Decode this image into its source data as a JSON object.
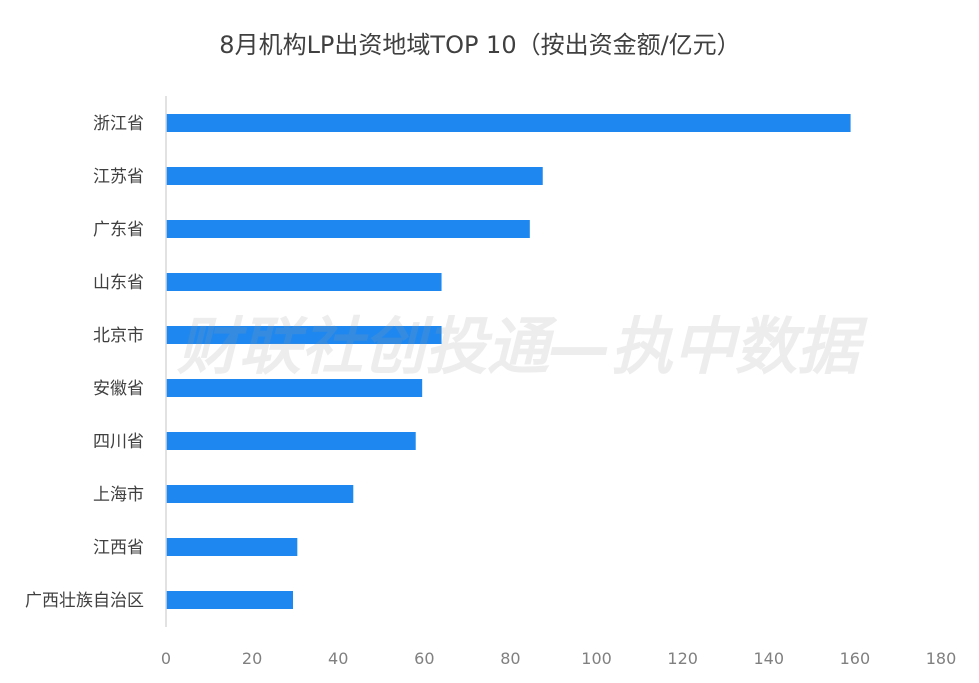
{
  "chart_data": {
    "type": "bar",
    "orientation": "horizontal",
    "title": "8月机构LP出资地域TOP 10（按出资金额/亿元）",
    "categories": [
      "浙江省",
      "江苏省",
      "广东省",
      "山东省",
      "北京市",
      "安徽省",
      "四川省",
      "上海市",
      "江西省",
      "广西壮族自治区"
    ],
    "values": [
      159,
      87.5,
      84.5,
      64,
      64,
      59.5,
      58,
      43.5,
      30.5,
      29.5
    ],
    "xlim": [
      0,
      180
    ],
    "xticks": [
      0,
      20,
      40,
      60,
      80,
      100,
      120,
      140,
      160,
      180
    ],
    "grid": false,
    "bar_color": "#1e88f0",
    "axis_color": "#d9d9d9"
  },
  "watermark": "财联社创投通—执中数据"
}
